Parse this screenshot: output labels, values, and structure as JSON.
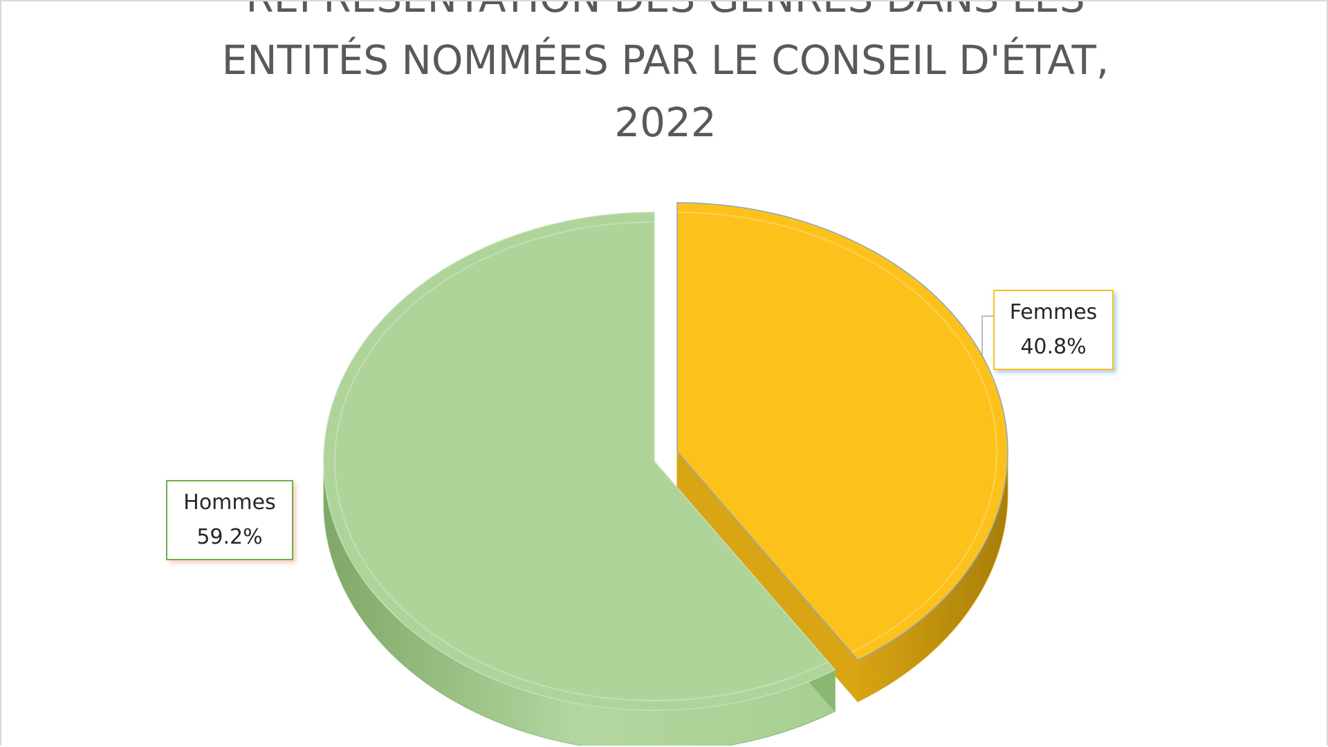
{
  "chart_data": {
    "type": "pie",
    "title_lines": [
      "REPRÉSENTATION DES GENRES DANS LES",
      "ENTITÉS NOMMÉES PAR LE CONSEIL D'ÉTAT,",
      "2022"
    ],
    "slices": [
      {
        "label": "Femmes",
        "value": 40.8,
        "display": "40.8%",
        "color": "#fcc21b",
        "side_color": "#d9a514"
      },
      {
        "label": "Hommes",
        "value": 59.2,
        "display": "59.2%",
        "color": "#aed49a",
        "side_color": "#8ab872"
      }
    ],
    "style": "3d-exploded",
    "legend": "none"
  }
}
